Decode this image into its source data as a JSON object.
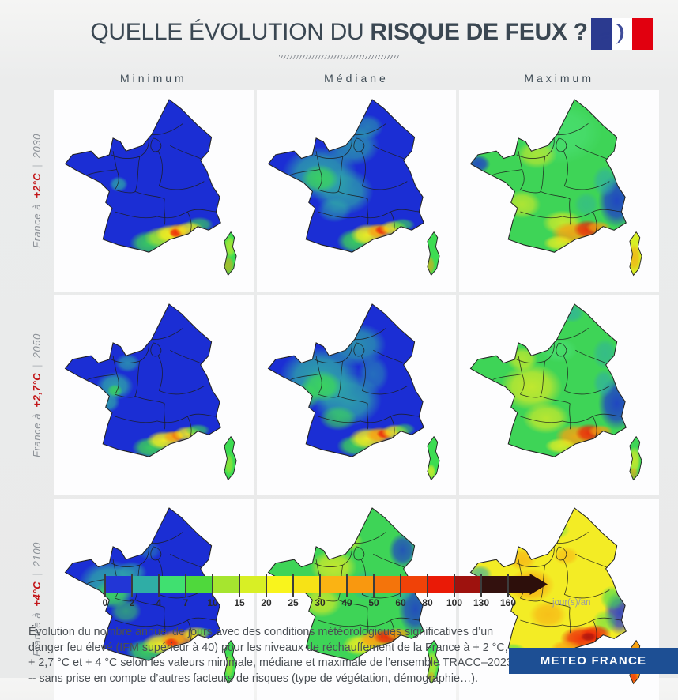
{
  "header": {
    "title_regular": "QUELLE ÉVOLUTION DU ",
    "title_bold": "RISQUE DE FEUX ?",
    "flag_colors": {
      "blue": "#2b3a8f",
      "white": "#ffffff",
      "red": "#e1000f"
    }
  },
  "columns": [
    "Minimum",
    "Médiane",
    "Maximum"
  ],
  "rows": [
    {
      "prefix": "France à",
      "temp": "+2°C",
      "sep": "|",
      "year": "2030"
    },
    {
      "prefix": "France à",
      "temp": "+2,7°C",
      "sep": "|",
      "year": "2050"
    },
    {
      "prefix": "France à",
      "temp": "+4°C",
      "sep": "|",
      "year": "2100"
    }
  ],
  "legend": {
    "ticks": [
      "0",
      "2",
      "4",
      "7",
      "10",
      "15",
      "20",
      "25",
      "30",
      "40",
      "50",
      "60",
      "80",
      "100",
      "130",
      "160"
    ],
    "colors": [
      "#2236d6",
      "#2fada6",
      "#40e070",
      "#4fd83c",
      "#a6e52f",
      "#d8ef25",
      "#f9f41c",
      "#f7e216",
      "#fbb313",
      "#f9980f",
      "#f4740b",
      "#f04208",
      "#ea1a06",
      "#9e120e",
      "#33110e"
    ],
    "arrow_color": "#2d0f0b",
    "unit": "jour(s)/an"
  },
  "caption": "Évolution du nombre annuel de jours avec des conditions météorologiques significatives d’un danger feu élevé (IFM supérieur à 40) pour les niveaux de réchauffement de la France à + 2 °C, + 2,7 °C et + 4 °C selon les valeurs minimale, médiane et maximale de l’ensemble TRACC–2023 -- sans prise en compte d’autres facteurs de risques (type de végétation, démographie…).",
  "footer": {
    "brand": "METEO FRANCE"
  },
  "maps": [
    {
      "name": "2030-minimum",
      "base": "#1b2ed4",
      "corsica": "#3ddc52",
      "blobs": [
        [
          62,
          98,
          6,
          5,
          "#2fada6",
          0.8
        ],
        [
          150,
          142,
          9,
          5,
          "#3ddc52",
          0.7
        ],
        [
          96,
          162,
          13,
          8,
          "#3ddc52",
          0.9
        ],
        [
          110,
          156,
          12,
          7,
          "#a8e52f",
          0.9
        ],
        [
          119,
          152,
          10,
          6,
          "#f7f01e",
          0.95
        ],
        [
          127,
          149,
          7,
          5,
          "#f9a211",
          0.9
        ],
        [
          124,
          151,
          4,
          3,
          "#ee2207",
          0.85
        ],
        [
          139,
          147,
          9,
          5,
          "#f7f01e",
          0.85
        ],
        [
          183,
          166,
          4,
          7,
          "#f7f01e",
          0.55
        ],
        [
          181,
          186,
          4,
          6,
          "#f9a211",
          0.55
        ]
      ]
    },
    {
      "name": "2030-mediane",
      "base": "#1b2ed4",
      "corsica": "#3ddc52",
      "blobs": [
        [
          60,
          86,
          24,
          17,
          "#2fada6",
          0.85
        ],
        [
          96,
          56,
          17,
          13,
          "#2fada6",
          0.7
        ],
        [
          86,
          106,
          19,
          15,
          "#2fada6",
          0.8
        ],
        [
          112,
          36,
          10,
          8,
          "#2fada6",
          0.6
        ],
        [
          60,
          92,
          12,
          9,
          "#3ddc52",
          0.8
        ],
        [
          76,
          126,
          11,
          8,
          "#2fada6",
          0.6
        ],
        [
          99,
          160,
          12,
          8,
          "#3ddc52",
          0.9
        ],
        [
          112,
          153,
          11,
          7,
          "#f7f01e",
          0.95
        ],
        [
          124,
          149,
          8,
          5,
          "#f9a211",
          0.95
        ],
        [
          128,
          148,
          5,
          3,
          "#ee2207",
          0.9
        ],
        [
          140,
          146,
          9,
          5,
          "#f7f01e",
          0.9
        ],
        [
          150,
          142,
          8,
          4,
          "#3ddc52",
          0.7
        ],
        [
          182,
          174,
          4,
          9,
          "#3ddc52",
          0.8
        ],
        [
          180,
          186,
          3,
          6,
          "#f9a211",
          0.6
        ]
      ]
    },
    {
      "name": "2030-maximum",
      "base": "#3ed457",
      "corsica": "#d8ef25",
      "blobs": [
        [
          100,
          42,
          28,
          20,
          "#4fe47d",
          0.55
        ],
        [
          76,
          66,
          13,
          9,
          "#f7f01e",
          0.55
        ],
        [
          60,
          120,
          12,
          9,
          "#f7f01e",
          0.6
        ],
        [
          104,
          140,
          13,
          8,
          "#f7f01e",
          0.7
        ],
        [
          12,
          76,
          8,
          6,
          "#1b2ed4",
          0.8
        ],
        [
          163,
          116,
          12,
          17,
          "#1b2ed4",
          0.85
        ],
        [
          150,
          95,
          8,
          10,
          "#2fada6",
          0.7
        ],
        [
          130,
          120,
          8,
          8,
          "#2fada6",
          0.5
        ],
        [
          115,
          152,
          14,
          8,
          "#f9a211",
          0.9
        ],
        [
          131,
          147,
          9,
          6,
          "#ee2207",
          0.85
        ],
        [
          143,
          145,
          8,
          4,
          "#f9a211",
          0.8
        ],
        [
          100,
          162,
          10,
          5,
          "#f7f01e",
          0.8
        ],
        [
          182,
          178,
          4,
          9,
          "#f9a211",
          0.65
        ]
      ]
    },
    {
      "name": "2050-minimum",
      "base": "#1b2ed4",
      "corsica": "#3ddc52",
      "blobs": [
        [
          58,
          95,
          12,
          9,
          "#2fada6",
          0.85
        ],
        [
          72,
          70,
          8,
          6,
          "#2fada6",
          0.7
        ],
        [
          50,
          112,
          8,
          7,
          "#2fada6",
          0.8
        ],
        [
          58,
          100,
          5,
          4,
          "#3ddc52",
          0.8
        ],
        [
          97,
          162,
          12,
          7,
          "#3ddc52",
          0.9
        ],
        [
          111,
          154,
          11,
          6,
          "#f7f01e",
          0.95
        ],
        [
          122,
          150,
          7,
          4,
          "#f9a211",
          0.9
        ],
        [
          126,
          149,
          4,
          3,
          "#f4740b",
          0.8
        ],
        [
          137,
          147,
          9,
          5,
          "#f7f01e",
          0.9
        ],
        [
          148,
          143,
          8,
          4,
          "#3ddc52",
          0.7
        ],
        [
          182,
          180,
          3,
          7,
          "#a8e52f",
          0.7
        ]
      ]
    },
    {
      "name": "2050-mediane",
      "base": "#1b2ed4",
      "corsica": "#3ddc52",
      "blobs": [
        [
          60,
          85,
          26,
          19,
          "#2fada6",
          0.9
        ],
        [
          90,
          110,
          22,
          17,
          "#2fada6",
          0.85
        ],
        [
          100,
          50,
          19,
          14,
          "#2fada6",
          0.75
        ],
        [
          62,
          95,
          13,
          10,
          "#3ddc52",
          0.85
        ],
        [
          80,
          130,
          12,
          8,
          "#3ddc52",
          0.7
        ],
        [
          46,
          106,
          8,
          9,
          "#3ddc52",
          0.6
        ],
        [
          118,
          82,
          10,
          12,
          "#2fada6",
          0.5
        ],
        [
          99,
          160,
          12,
          7,
          "#3ddc52",
          0.9
        ],
        [
          112,
          152,
          12,
          7,
          "#f7f01e",
          0.95
        ],
        [
          125,
          148,
          9,
          5,
          "#f9a211",
          0.95
        ],
        [
          130,
          147,
          5,
          3,
          "#ee2207",
          0.9
        ],
        [
          142,
          145,
          9,
          5,
          "#f7f01e",
          0.9
        ],
        [
          152,
          142,
          7,
          4,
          "#3ddc52",
          0.6
        ],
        [
          182,
          175,
          4,
          10,
          "#3ddc52",
          0.85
        ],
        [
          181,
          188,
          3,
          5,
          "#f7f01e",
          0.7
        ]
      ]
    },
    {
      "name": "2050-maximum",
      "base": "#3ed457",
      "corsica": "#3ed457",
      "blobs": [
        [
          70,
          96,
          20,
          15,
          "#f7f01e",
          0.7
        ],
        [
          86,
          130,
          15,
          10,
          "#f7f01e",
          0.65
        ],
        [
          60,
          66,
          10,
          8,
          "#f7f01e",
          0.6
        ],
        [
          100,
          56,
          12,
          8,
          "#4fe47d",
          0.5
        ],
        [
          114,
          16,
          8,
          6,
          "#2fada6",
          0.7
        ],
        [
          150,
          60,
          8,
          10,
          "#2fada6",
          0.6
        ],
        [
          163,
          114,
          12,
          17,
          "#1b2ed4",
          0.85
        ],
        [
          149,
          92,
          7,
          9,
          "#2fada6",
          0.7
        ],
        [
          118,
          150,
          13,
          8,
          "#f9a211",
          0.9
        ],
        [
          133,
          146,
          9,
          6,
          "#ee2207",
          0.88
        ],
        [
          145,
          144,
          8,
          4,
          "#f9a211",
          0.8
        ],
        [
          102,
          160,
          10,
          5,
          "#f7f01e",
          0.8
        ],
        [
          182,
          176,
          4,
          9,
          "#f7f01e",
          0.7
        ],
        [
          181,
          190,
          3,
          4,
          "#f9a211",
          0.6
        ]
      ]
    },
    {
      "name": "2100-minimum",
      "base": "#1b2ed4",
      "corsica": "#3ddc52",
      "blobs": [
        [
          52,
          88,
          20,
          15,
          "#2fada6",
          0.9
        ],
        [
          55,
          100,
          12,
          9,
          "#3ddc52",
          0.8
        ],
        [
          70,
          118,
          10,
          8,
          "#3ddc52",
          0.6
        ],
        [
          76,
          76,
          10,
          7,
          "#2fada6",
          0.7
        ],
        [
          95,
          52,
          8,
          6,
          "#2fada6",
          0.4
        ],
        [
          92,
          162,
          13,
          8,
          "#3ddc52",
          0.9
        ],
        [
          108,
          154,
          12,
          7,
          "#f7f01e",
          0.95
        ],
        [
          122,
          149,
          9,
          6,
          "#f9a211",
          0.95
        ],
        [
          120,
          152,
          5,
          3,
          "#ee2207",
          0.85
        ],
        [
          136,
          147,
          10,
          5,
          "#f9a211",
          0.8
        ],
        [
          146,
          143,
          9,
          5,
          "#f7f01e",
          0.8
        ],
        [
          154,
          141,
          6,
          3,
          "#3ddc52",
          0.6
        ],
        [
          182,
          178,
          3,
          8,
          "#a8e52f",
          0.7
        ]
      ]
    },
    {
      "name": "2100-mediane",
      "base": "#3ed457",
      "corsica": "#3ddc52",
      "blobs": [
        [
          75,
          70,
          15,
          11,
          "#f7f01e",
          0.7
        ],
        [
          62,
          108,
          13,
          10,
          "#f7f01e",
          0.65
        ],
        [
          90,
          42,
          10,
          7,
          "#f7f01e",
          0.6
        ],
        [
          110,
          90,
          10,
          10,
          "#2fada6",
          0.6
        ],
        [
          150,
          52,
          9,
          11,
          "#1b2ed4",
          0.75
        ],
        [
          164,
          116,
          11,
          16,
          "#1b2ed4",
          0.8
        ],
        [
          150,
          96,
          7,
          8,
          "#2fada6",
          0.6
        ],
        [
          105,
          155,
          12,
          7,
          "#f7f01e",
          0.9
        ],
        [
          120,
          149,
          11,
          6,
          "#f9a211",
          0.95
        ],
        [
          133,
          146,
          9,
          5,
          "#ee2207",
          0.9
        ],
        [
          145,
          143,
          8,
          4,
          "#f9a211",
          0.85
        ],
        [
          182,
          176,
          4,
          9,
          "#f7f01e",
          0.6
        ],
        [
          181,
          190,
          3,
          4,
          "#f9a211",
          0.6
        ]
      ]
    },
    {
      "name": "2100-maximum",
      "base": "#f3ec25",
      "corsica": "#f9a211",
      "blobs": [
        [
          70,
          90,
          15,
          11,
          "#f9a211",
          0.7
        ],
        [
          88,
          122,
          12,
          9,
          "#f9a211",
          0.6
        ],
        [
          60,
          62,
          9,
          7,
          "#f9a211",
          0.6
        ],
        [
          108,
          58,
          8,
          6,
          "#f9a211",
          0.5
        ],
        [
          95,
          30,
          10,
          6,
          "#3ddc52",
          0.5
        ],
        [
          14,
          78,
          8,
          6,
          "#2fada6",
          0.7
        ],
        [
          30,
          88,
          8,
          5,
          "#3ddc52",
          0.6
        ],
        [
          50,
          160,
          8,
          4,
          "#3ddc52",
          0.6
        ],
        [
          166,
          120,
          10,
          14,
          "#1b2ed4",
          0.85
        ],
        [
          158,
          104,
          8,
          8,
          "#3ddc52",
          0.7
        ],
        [
          150,
          130,
          8,
          8,
          "#3ddc52",
          0.5
        ],
        [
          125,
          148,
          14,
          8,
          "#ee2207",
          0.9
        ],
        [
          140,
          143,
          10,
          6,
          "#ee2207",
          0.85
        ],
        [
          132,
          146,
          5,
          3,
          "#a31310",
          0.8
        ],
        [
          108,
          158,
          10,
          5,
          "#f9a211",
          0.8
        ],
        [
          182,
          178,
          4,
          10,
          "#f9a211",
          0.8
        ],
        [
          181,
          190,
          3,
          4,
          "#ee2207",
          0.7
        ]
      ]
    }
  ]
}
